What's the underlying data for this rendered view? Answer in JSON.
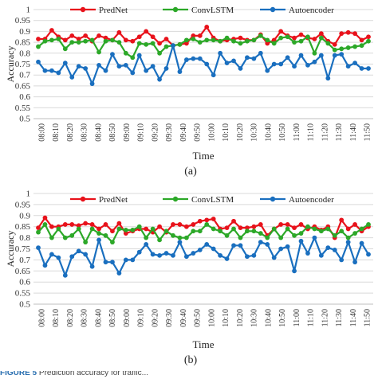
{
  "colors": {
    "PredNet": "#e8121b",
    "ConvLSTM": "#2ca828",
    "Autoencoder": "#1a6fbf",
    "grid": "#d9d9d9",
    "axis": "#595959"
  },
  "caption_fragment": {
    "lead": "FIGURE 5",
    "text": "Prediction accuracy for traffic... "
  },
  "chart_data": [
    {
      "type": "line",
      "panel_label": "(a)",
      "xlabel": "Time",
      "ylabel": "Accuracy",
      "ylim": [
        0.5,
        1
      ],
      "yticks": [
        "0.5",
        "0.55",
        "0.6",
        "0.65",
        "0.7",
        "0.75",
        "0.8",
        "0.85",
        "0.9",
        "0.95",
        "1"
      ],
      "x_tick_labels": [
        "08:00",
        "08:10",
        "08:20",
        "08:30",
        "08:40",
        "08:50",
        "09:00",
        "09:10",
        "09:20",
        "09:30",
        "09:40",
        "09:50",
        "10:00",
        "10:10",
        "10:20",
        "10:30",
        "10:40",
        "10:50",
        "11:00",
        "11:10",
        "11:20",
        "11:30",
        "11:40",
        "11:50"
      ],
      "grid": true,
      "legend": "top",
      "series": [
        {
          "name": "PredNet",
          "values": [
            0.865,
            0.865,
            0.905,
            0.875,
            0.86,
            0.88,
            0.865,
            0.88,
            0.855,
            0.88,
            0.87,
            0.86,
            0.895,
            0.86,
            0.855,
            0.875,
            0.9,
            0.875,
            0.845,
            0.865,
            0.835,
            0.84,
            0.845,
            0.88,
            0.88,
            0.92,
            0.87,
            0.855,
            0.86,
            0.865,
            0.87,
            0.86,
            0.86,
            0.885,
            0.845,
            0.86,
            0.9,
            0.88,
            0.87,
            0.885,
            0.87,
            0.865,
            0.89,
            0.855,
            0.84,
            0.89,
            0.895,
            0.89,
            0.86,
            0.875
          ]
        },
        {
          "name": "ConvLSTM",
          "values": [
            0.83,
            0.855,
            0.86,
            0.865,
            0.82,
            0.85,
            0.85,
            0.855,
            0.86,
            0.805,
            0.855,
            0.86,
            0.85,
            0.8,
            0.78,
            0.845,
            0.84,
            0.845,
            0.8,
            0.83,
            0.835,
            0.84,
            0.86,
            0.865,
            0.85,
            0.86,
            0.86,
            0.855,
            0.87,
            0.855,
            0.845,
            0.855,
            0.86,
            0.88,
            0.86,
            0.845,
            0.87,
            0.875,
            0.85,
            0.855,
            0.875,
            0.8,
            0.87,
            0.845,
            0.815,
            0.82,
            0.825,
            0.83,
            0.835,
            0.855
          ]
        },
        {
          "name": "Autoencoder",
          "values": [
            0.76,
            0.72,
            0.72,
            0.71,
            0.755,
            0.69,
            0.74,
            0.73,
            0.66,
            0.745,
            0.72,
            0.795,
            0.74,
            0.745,
            0.71,
            0.79,
            0.72,
            0.74,
            0.68,
            0.73,
            0.835,
            0.715,
            0.77,
            0.775,
            0.775,
            0.75,
            0.7,
            0.8,
            0.755,
            0.765,
            0.73,
            0.78,
            0.775,
            0.8,
            0.72,
            0.75,
            0.75,
            0.78,
            0.74,
            0.79,
            0.745,
            0.76,
            0.79,
            0.685,
            0.79,
            0.795,
            0.74,
            0.755,
            0.73,
            0.73
          ]
        }
      ]
    },
    {
      "type": "line",
      "panel_label": "(b)",
      "xlabel": "Time",
      "ylabel": "Accuracy",
      "ylim": [
        0.5,
        1
      ],
      "yticks": [
        "0.5",
        "0.55",
        "0.6",
        "0.65",
        "0.7",
        "0.75",
        "0.8",
        "0.85",
        "0.9",
        "0.95",
        "1"
      ],
      "x_tick_labels": [
        "08:00",
        "08:10",
        "08:20",
        "08:30",
        "08:40",
        "08:50",
        "09:00",
        "09:10",
        "09:20",
        "09:30",
        "09:40",
        "09:50",
        "10:00",
        "10:10",
        "10:20",
        "10:30",
        "10:40",
        "10:50",
        "11:00",
        "11:10",
        "11:20",
        "11:30",
        "11:40",
        "11:50"
      ],
      "grid": true,
      "legend": "top",
      "series": [
        {
          "name": "PredNet",
          "values": [
            0.845,
            0.89,
            0.85,
            0.85,
            0.86,
            0.86,
            0.855,
            0.865,
            0.86,
            0.84,
            0.86,
            0.83,
            0.865,
            0.82,
            0.83,
            0.84,
            0.84,
            0.825,
            0.85,
            0.825,
            0.86,
            0.86,
            0.85,
            0.86,
            0.875,
            0.88,
            0.885,
            0.84,
            0.845,
            0.875,
            0.845,
            0.845,
            0.85,
            0.86,
            0.81,
            0.84,
            0.86,
            0.86,
            0.845,
            0.86,
            0.84,
            0.85,
            0.835,
            0.85,
            0.8,
            0.88,
            0.84,
            0.86,
            0.83,
            0.85
          ]
        },
        {
          "name": "ConvLSTM",
          "values": [
            0.825,
            0.86,
            0.8,
            0.84,
            0.8,
            0.81,
            0.84,
            0.78,
            0.84,
            0.82,
            0.81,
            0.78,
            0.84,
            0.835,
            0.835,
            0.85,
            0.8,
            0.84,
            0.79,
            0.83,
            0.81,
            0.8,
            0.8,
            0.83,
            0.83,
            0.86,
            0.84,
            0.83,
            0.81,
            0.84,
            0.8,
            0.83,
            0.83,
            0.82,
            0.8,
            0.84,
            0.8,
            0.84,
            0.81,
            0.82,
            0.85,
            0.84,
            0.83,
            0.84,
            0.81,
            0.83,
            0.8,
            0.82,
            0.84,
            0.86
          ]
        },
        {
          "name": "Autoencoder",
          "values": [
            0.755,
            0.675,
            0.725,
            0.71,
            0.63,
            0.715,
            0.74,
            0.725,
            0.67,
            0.79,
            0.69,
            0.69,
            0.64,
            0.7,
            0.7,
            0.735,
            0.77,
            0.725,
            0.72,
            0.73,
            0.72,
            0.78,
            0.715,
            0.73,
            0.745,
            0.77,
            0.75,
            0.72,
            0.705,
            0.765,
            0.765,
            0.715,
            0.72,
            0.78,
            0.77,
            0.71,
            0.75,
            0.76,
            0.65,
            0.785,
            0.73,
            0.8,
            0.72,
            0.755,
            0.745,
            0.7,
            0.78,
            0.69,
            0.775,
            0.725
          ]
        }
      ]
    }
  ]
}
